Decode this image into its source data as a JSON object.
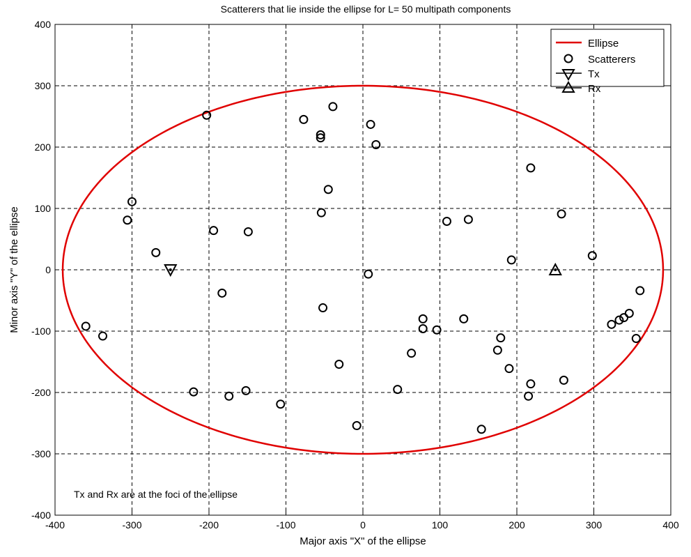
{
  "chart_data": {
    "type": "scatter",
    "title": "Scatterers that lie inside the ellipse for L= 50 multipath components",
    "xlabel": "Major axis \"X\" of the ellipse",
    "ylabel": "Minor axis \"Y\" of the ellipse",
    "xlim": [
      -400,
      400
    ],
    "ylim": [
      -400,
      400
    ],
    "xticks": [
      -400,
      -300,
      -200,
      -100,
      0,
      100,
      200,
      300,
      400
    ],
    "yticks": [
      -400,
      -300,
      -200,
      -100,
      0,
      100,
      200,
      300,
      400
    ],
    "grid": true,
    "legend_position": "top-right",
    "annotation": "Tx and Rx are at the foci of the ellipse",
    "series": [
      {
        "name": "Ellipse",
        "kind": "line",
        "color": "#e00000",
        "semi_major": 390,
        "semi_minor": 300,
        "center": [
          0,
          0
        ]
      },
      {
        "name": "Scatterers",
        "kind": "marker",
        "marker": "circle",
        "color": "#000000",
        "points": [
          [
            -203,
            252
          ],
          [
            -39,
            266
          ],
          [
            -77,
            245
          ],
          [
            -55,
            220
          ],
          [
            -55,
            215
          ],
          [
            10,
            237
          ],
          [
            17,
            204
          ],
          [
            -300,
            111
          ],
          [
            -306,
            81
          ],
          [
            -194,
            64
          ],
          [
            -149,
            62
          ],
          [
            -45,
            131
          ],
          [
            -54,
            93
          ],
          [
            -269,
            28
          ],
          [
            -183,
            -38
          ],
          [
            -52,
            -62
          ],
          [
            7,
            -7
          ],
          [
            -360,
            -92
          ],
          [
            -338,
            -108
          ],
          [
            -220,
            -199
          ],
          [
            -174,
            -206
          ],
          [
            -152,
            -197
          ],
          [
            -107,
            -219
          ],
          [
            -31,
            -154
          ],
          [
            -8,
            -254
          ],
          [
            45,
            -195
          ],
          [
            63,
            -136
          ],
          [
            78,
            -80
          ],
          [
            78,
            -96
          ],
          [
            96,
            -98
          ],
          [
            131,
            -80
          ],
          [
            154,
            -260
          ],
          [
            109,
            79
          ],
          [
            137,
            82
          ],
          [
            193,
            16
          ],
          [
            218,
            166
          ],
          [
            258,
            91
          ],
          [
            298,
            23
          ],
          [
            175,
            -131
          ],
          [
            179,
            -111
          ],
          [
            190,
            -161
          ],
          [
            218,
            -186
          ],
          [
            215,
            -206
          ],
          [
            261,
            -180
          ],
          [
            360,
            -34
          ],
          [
            323,
            -89
          ],
          [
            333,
            -82
          ],
          [
            339,
            -78
          ],
          [
            346,
            -71
          ],
          [
            355,
            -112
          ]
        ]
      },
      {
        "name": "Tx",
        "kind": "marker",
        "marker": "triangle-down",
        "color": "#000000",
        "points": [
          [
            -250,
            0
          ]
        ]
      },
      {
        "name": "Rx",
        "kind": "marker",
        "marker": "triangle-up",
        "color": "#000000",
        "points": [
          [
            250,
            0
          ]
        ]
      }
    ]
  }
}
